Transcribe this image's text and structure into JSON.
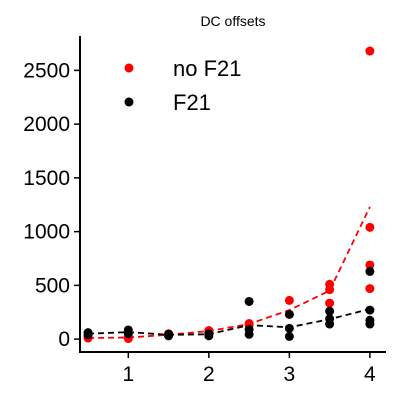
{
  "chart_data": {
    "type": "scatter",
    "title": "DC offsets",
    "xlabel": "",
    "ylabel": "",
    "xlim": [
      0.4,
      4.2
    ],
    "ylim": [
      -120,
      2820
    ],
    "xticks": [
      1,
      2,
      3,
      4
    ],
    "yticks": [
      0,
      500,
      1000,
      1500,
      2000,
      2500
    ],
    "grid": false,
    "legend_position": "top-left",
    "series": [
      {
        "name": "no F21",
        "color": "#ff0000",
        "points": [
          [
            0.5,
            10
          ],
          [
            0.5,
            20
          ],
          [
            1.0,
            5
          ],
          [
            1.0,
            15
          ],
          [
            1.5,
            40
          ],
          [
            1.5,
            50
          ],
          [
            2.0,
            65
          ],
          [
            2.0,
            80
          ],
          [
            2.5,
            130
          ],
          [
            2.5,
            145
          ],
          [
            3.0,
            230
          ],
          [
            3.0,
            360
          ],
          [
            3.5,
            335
          ],
          [
            3.5,
            460
          ],
          [
            3.5,
            510
          ],
          [
            4.0,
            470
          ],
          [
            4.0,
            690
          ],
          [
            4.0,
            1040
          ],
          [
            4.0,
            2680
          ]
        ],
        "trend": [
          [
            0.5,
            10
          ],
          [
            1.0,
            15
          ],
          [
            1.5,
            40
          ],
          [
            2.0,
            75
          ],
          [
            2.5,
            140
          ],
          [
            3.0,
            270
          ],
          [
            3.5,
            450
          ],
          [
            4.0,
            1230
          ]
        ]
      },
      {
        "name": "F21",
        "color": "#000000",
        "points": [
          [
            0.5,
            40
          ],
          [
            0.5,
            60
          ],
          [
            1.0,
            50
          ],
          [
            1.0,
            85
          ],
          [
            1.5,
            30
          ],
          [
            1.5,
            45
          ],
          [
            2.0,
            30
          ],
          [
            2.0,
            50
          ],
          [
            2.5,
            45
          ],
          [
            2.5,
            90
          ],
          [
            2.5,
            350
          ],
          [
            3.0,
            25
          ],
          [
            3.0,
            100
          ],
          [
            3.0,
            230
          ],
          [
            3.5,
            140
          ],
          [
            3.5,
            190
          ],
          [
            3.5,
            260
          ],
          [
            4.0,
            140
          ],
          [
            4.0,
            175
          ],
          [
            4.0,
            270
          ],
          [
            4.0,
            630
          ]
        ],
        "trend": [
          [
            0.5,
            50
          ],
          [
            1.0,
            65
          ],
          [
            1.5,
            40
          ],
          [
            2.0,
            45
          ],
          [
            2.5,
            130
          ],
          [
            3.0,
            110
          ],
          [
            3.5,
            185
          ],
          [
            4.0,
            280
          ]
        ]
      }
    ]
  }
}
